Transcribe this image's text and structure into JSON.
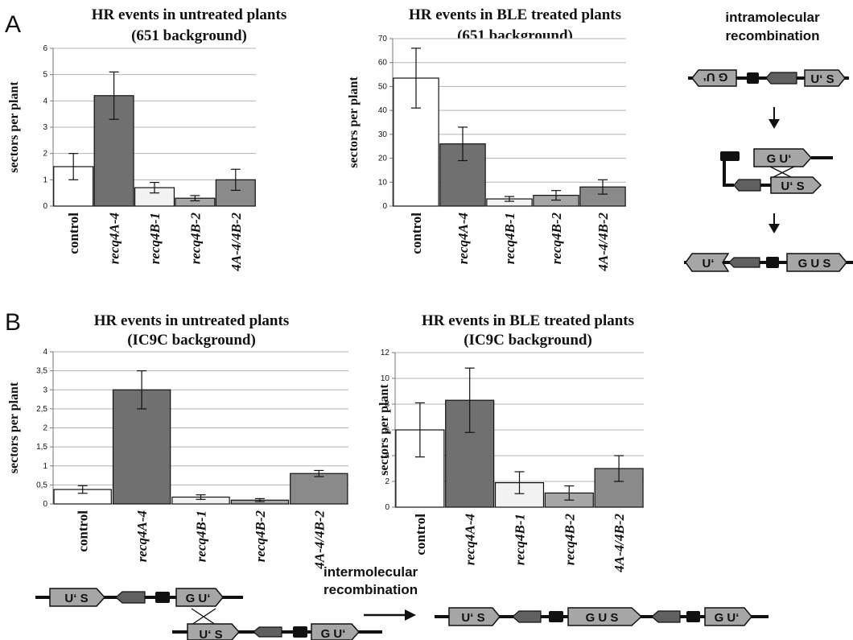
{
  "panels": {
    "A": "A",
    "B": "B"
  },
  "diagrams": {
    "intra_title_line1": "intramolecular",
    "intra_title_line2": "recombination",
    "inter_title_line1": "intermolecular",
    "inter_title_line2": "recombination",
    "labels": {
      "gu_rev": "G U‘",
      "us": "U‘ S",
      "gu": "G U‘",
      "u_prime": "U‘",
      "gus": "G U S"
    }
  },
  "chart_data": [
    {
      "type": "bar",
      "title_line1": "HR events in untreated plants",
      "title_line2": "(651 background)",
      "ylabel": "sectors per plant",
      "ylim": [
        0,
        6
      ],
      "yticks": [
        0,
        1,
        2,
        3,
        4,
        5,
        6
      ],
      "categories": [
        "control",
        "recq4A-4",
        "recq4B-1",
        "recq4B-2",
        "4A-4/4B-2"
      ],
      "values": [
        1.5,
        4.2,
        0.7,
        0.3,
        1.0
      ],
      "errors": [
        0.5,
        0.9,
        0.2,
        0.1,
        0.4
      ],
      "bar_colors": [
        "#ffffff",
        "#707070",
        "#f2f2f2",
        "#a6a6a6",
        "#8a8a8a"
      ],
      "grid": true
    },
    {
      "type": "bar",
      "title_line1": "HR events in BLE treated plants",
      "title_line2": "(651 background)",
      "ylabel": "sectors per plant",
      "ylim": [
        0,
        70
      ],
      "yticks": [
        0,
        10,
        20,
        30,
        40,
        50,
        60,
        70
      ],
      "categories": [
        "control",
        "recq4A-4",
        "recq4B-1",
        "recq4B-2",
        "4A-4/4B-2"
      ],
      "values": [
        53.5,
        26,
        3,
        4.5,
        8
      ],
      "errors": [
        12.5,
        7,
        1,
        2,
        3
      ],
      "bar_colors": [
        "#ffffff",
        "#707070",
        "#f2f2f2",
        "#a6a6a6",
        "#8a8a8a"
      ],
      "grid": true
    },
    {
      "type": "bar",
      "title_line1": "HR events in untreated plants",
      "title_line2": "(IC9C background)",
      "ylabel": "sectors per plant",
      "ylim": [
        0,
        4
      ],
      "yticks": [
        "0",
        "0,5",
        "1",
        "1,5",
        "2",
        "2,5",
        "3",
        "3,5",
        "4"
      ],
      "categories": [
        "control",
        "recq4A-4",
        "recq4B-1",
        "recq4B-2",
        "4A-4/4B-2"
      ],
      "values": [
        0.38,
        3.0,
        0.18,
        0.1,
        0.8
      ],
      "errors": [
        0.1,
        0.5,
        0.06,
        0.04,
        0.08
      ],
      "bar_colors": [
        "#ffffff",
        "#707070",
        "#f2f2f2",
        "#a6a6a6",
        "#8a8a8a"
      ],
      "grid": true
    },
    {
      "type": "bar",
      "title_line1": "HR events in BLE treated plants",
      "title_line2": "(IC9C background)",
      "ylabel": "sectors per plant",
      "ylim": [
        0,
        12
      ],
      "yticks": [
        0,
        2,
        4,
        6,
        8,
        10,
        12
      ],
      "categories": [
        "control",
        "recq4A-4",
        "recq4B-1",
        "recq4B-2",
        "4A-4/4B-2"
      ],
      "values": [
        6.0,
        8.3,
        1.9,
        1.1,
        3.0
      ],
      "errors": [
        2.1,
        2.5,
        0.85,
        0.55,
        1.0
      ],
      "bar_colors": [
        "#ffffff",
        "#707070",
        "#f2f2f2",
        "#a6a6a6",
        "#8a8a8a"
      ],
      "grid": true
    }
  ]
}
